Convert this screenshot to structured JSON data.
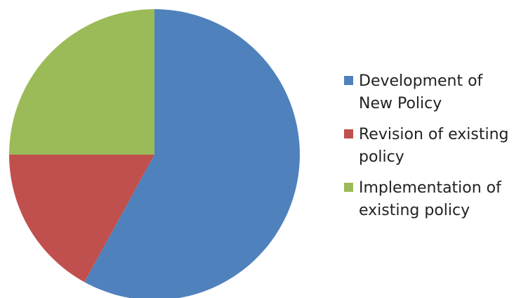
{
  "chart_data": {
    "type": "pie",
    "title": "",
    "slices": [
      {
        "label": "Development of\nNew Policy",
        "value": 58,
        "color": "#4F81BD"
      },
      {
        "label": "Revision of existing\npolicy",
        "value": 17,
        "color": "#C0504D"
      },
      {
        "label": "Implementation of\nexisting policy",
        "value": 25,
        "color": "#9BBB59"
      }
    ],
    "legend_position": "right"
  }
}
